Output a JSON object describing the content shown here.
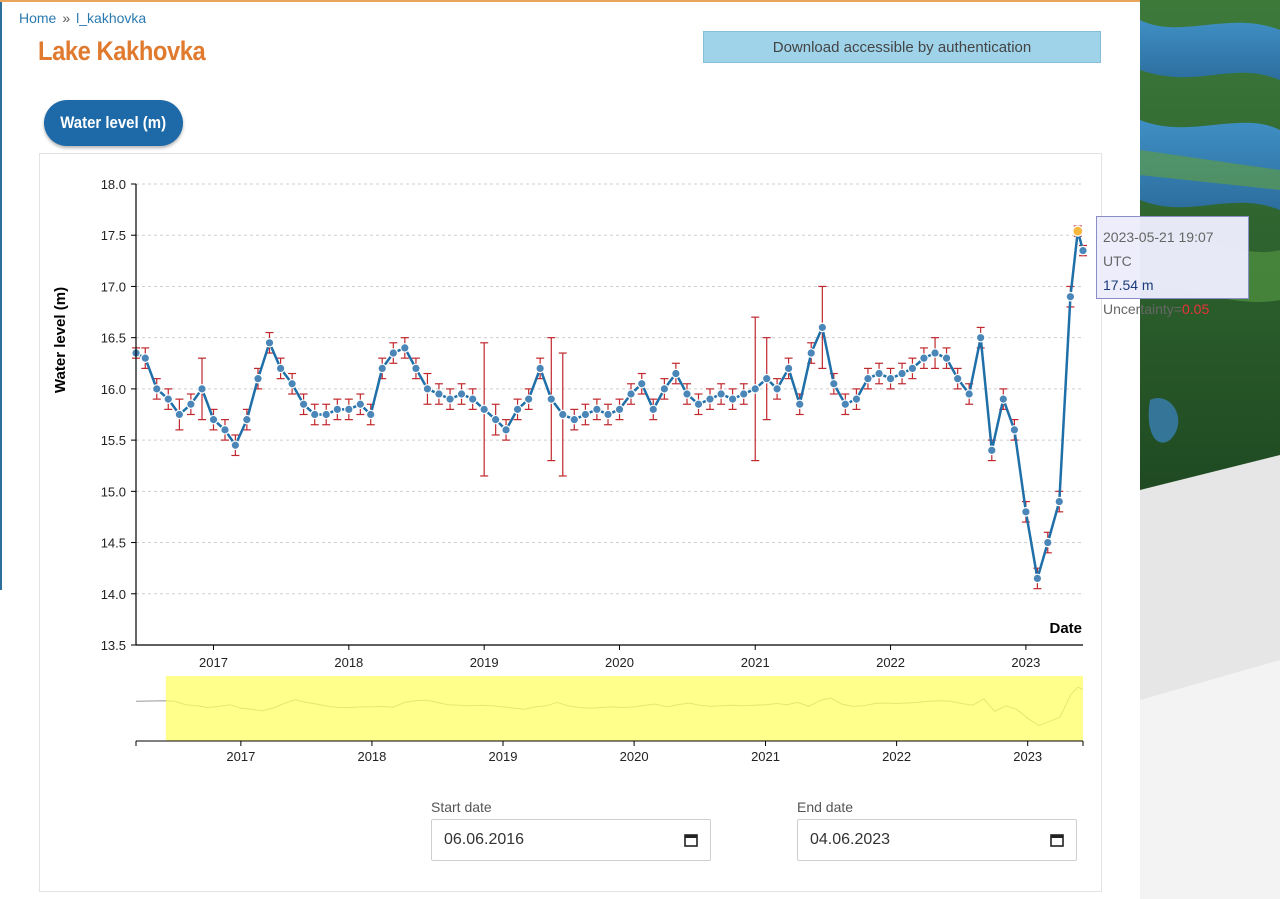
{
  "breadcrumb": {
    "home": "Home",
    "separator": "»",
    "current": "l_kakhovka"
  },
  "page_title": "Lake Kakhovka",
  "download_label": "Download accessible by authentication",
  "tab_label": "Water level (m)",
  "tooltip": {
    "date": "2023-05-21 19:07 UTC",
    "level": "17.54 m",
    "uncertainty_label": "Uncertainty=",
    "uncertainty_value": "0.05"
  },
  "start_date": {
    "label": "Start date",
    "value": "06.06.2016"
  },
  "end_date": {
    "label": "End date",
    "value": "04.06.2023"
  },
  "colors": {
    "title": "#e07a2e",
    "line": "#1f6fa8",
    "point": "#4a86b8",
    "error_bar": "#c0282d",
    "highlight_point": "#f5b942",
    "brush": "#ffff66"
  },
  "chart_data": {
    "type": "line",
    "xlabel": "Date",
    "ylabel": "Water level (m)",
    "y_ticks": [
      "13.5",
      "14.0",
      "14.5",
      "15.0",
      "15.5",
      "16.0",
      "16.5",
      "17.0",
      "17.5",
      "18.0"
    ],
    "x_ticks": [
      "2017",
      "2018",
      "2019",
      "2020",
      "2021",
      "2022",
      "2023"
    ],
    "ylim": [
      13.5,
      18.0
    ],
    "xlim": [
      "2016-06-06",
      "2023-06-04"
    ],
    "grid": "horizontal dashed",
    "series": [
      {
        "x": [
          "2016-06-06",
          "2016-07-01",
          "2016-08-01",
          "2016-09-01",
          "2016-10-01",
          "2016-11-01",
          "2016-12-01",
          "2017-01-01",
          "2017-02-01",
          "2017-03-01",
          "2017-04-01",
          "2017-05-01",
          "2017-06-01",
          "2017-07-01",
          "2017-08-01",
          "2017-09-01",
          "2017-10-01",
          "2017-11-01",
          "2017-12-01",
          "2018-01-01",
          "2018-02-01",
          "2018-03-01",
          "2018-04-01",
          "2018-05-01",
          "2018-06-01",
          "2018-07-01",
          "2018-08-01",
          "2018-09-01",
          "2018-10-01",
          "2018-11-01",
          "2018-12-01",
          "2019-01-01",
          "2019-02-01",
          "2019-03-01",
          "2019-04-01",
          "2019-05-01",
          "2019-06-01",
          "2019-07-01",
          "2019-08-01",
          "2019-09-01",
          "2019-10-01",
          "2019-11-01",
          "2019-12-01",
          "2020-01-01",
          "2020-02-01",
          "2020-03-01",
          "2020-04-01",
          "2020-05-01",
          "2020-06-01",
          "2020-07-01",
          "2020-08-01",
          "2020-09-01",
          "2020-10-01",
          "2020-11-01",
          "2020-12-01",
          "2021-01-01",
          "2021-02-01",
          "2021-03-01",
          "2021-04-01",
          "2021-05-01",
          "2021-06-01",
          "2021-07-01",
          "2021-08-01",
          "2021-09-01",
          "2021-10-01",
          "2021-11-01",
          "2021-12-01",
          "2022-01-01",
          "2022-02-01",
          "2022-03-01",
          "2022-04-01",
          "2022-05-01",
          "2022-06-01",
          "2022-07-01",
          "2022-08-01",
          "2022-09-01",
          "2022-10-01",
          "2022-11-01",
          "2022-12-01",
          "2023-01-01",
          "2023-02-01",
          "2023-03-01",
          "2023-04-01",
          "2023-05-01",
          "2023-05-21",
          "2023-06-04"
        ],
        "values": [
          16.35,
          16.3,
          16.0,
          15.9,
          15.75,
          15.85,
          16.0,
          15.7,
          15.6,
          15.45,
          15.7,
          16.1,
          16.45,
          16.2,
          16.05,
          15.85,
          15.75,
          15.75,
          15.8,
          15.8,
          15.85,
          15.75,
          16.2,
          16.35,
          16.4,
          16.2,
          16.0,
          15.95,
          15.9,
          15.95,
          15.9,
          15.8,
          15.7,
          15.6,
          15.8,
          15.9,
          16.2,
          15.9,
          15.75,
          15.7,
          15.75,
          15.8,
          15.75,
          15.8,
          15.95,
          16.05,
          15.8,
          16.0,
          16.15,
          15.95,
          15.85,
          15.9,
          15.95,
          15.9,
          15.95,
          16.0,
          16.1,
          16.0,
          16.2,
          15.85,
          16.35,
          16.6,
          16.05,
          15.85,
          15.9,
          16.1,
          16.15,
          16.1,
          16.15,
          16.2,
          16.3,
          16.35,
          16.3,
          16.1,
          15.95,
          16.5,
          15.4,
          15.9,
          15.6,
          14.8,
          14.15,
          14.5,
          14.9,
          16.9,
          17.54,
          17.35
        ],
        "uncertainty": [
          0.05,
          0.1,
          0.1,
          0.1,
          0.15,
          0.1,
          0.3,
          0.1,
          0.1,
          0.1,
          0.1,
          0.1,
          0.1,
          0.1,
          0.1,
          0.1,
          0.1,
          0.1,
          0.1,
          0.1,
          0.1,
          0.1,
          0.1,
          0.1,
          0.1,
          0.1,
          0.15,
          0.1,
          0.1,
          0.1,
          0.1,
          0.65,
          0.15,
          0.1,
          0.1,
          0.1,
          0.1,
          0.6,
          0.6,
          0.1,
          0.1,
          0.1,
          0.1,
          0.1,
          0.1,
          0.1,
          0.1,
          0.1,
          0.1,
          0.1,
          0.1,
          0.1,
          0.1,
          0.1,
          0.1,
          0.7,
          0.4,
          0.1,
          0.1,
          0.1,
          0.1,
          0.4,
          0.1,
          0.1,
          0.1,
          0.1,
          0.1,
          0.1,
          0.1,
          0.1,
          0.1,
          0.15,
          0.1,
          0.1,
          0.1,
          0.1,
          0.1,
          0.1,
          0.1,
          0.1,
          0.1,
          0.1,
          0.1,
          0.1,
          0.05,
          0.05
        ]
      }
    ],
    "highlighted_point": {
      "x": "2023-05-21",
      "value": 17.54
    },
    "navigator": {
      "x_ticks": [
        "2017",
        "2018",
        "2019",
        "2020",
        "2021",
        "2022",
        "2023"
      ],
      "selected_range": [
        "2016-06-06",
        "2023-06-04"
      ]
    }
  }
}
